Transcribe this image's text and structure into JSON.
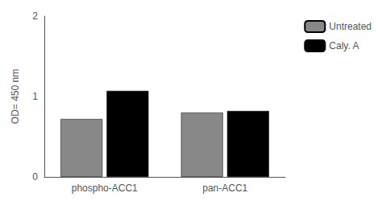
{
  "chart_data": {
    "type": "bar",
    "categories": [
      "phospho-ACC1",
      "pan-ACC1"
    ],
    "series": [
      {
        "name": "Untreated",
        "color": "#888888",
        "values": [
          0.72,
          0.8
        ]
      },
      {
        "name": "Caly. A",
        "color": "#000000",
        "values": [
          1.07,
          0.82
        ]
      }
    ],
    "ylabel": "OD= 450 nm",
    "ylim": [
      0,
      2
    ],
    "yticks": [
      0,
      1,
      2
    ],
    "grid": false,
    "legend": "right"
  }
}
